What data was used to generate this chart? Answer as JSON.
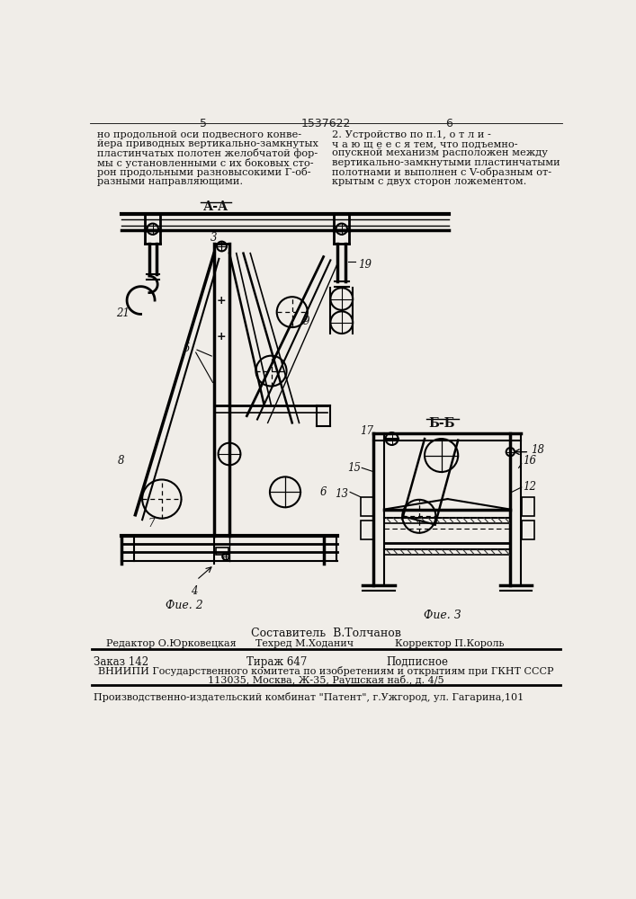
{
  "bg_color": "#f0ede8",
  "page_num_left": "5",
  "page_num_center": "1537622",
  "page_num_right": "6",
  "text_left_col": [
    "но продольной оси подвесного конве-",
    "йера приводных вертикально-замкнутых",
    "пластинчатых полотен желобчатой фор-",
    "мы с установленными с их боковых сто-",
    "рон продольными разновысокими Г-об-",
    "разными направляющими."
  ],
  "text_right_col": [
    "2. Устройство по п.1, о т л и -",
    "ч а ю щ е е с я тем, что подъемно-",
    "опускной механизм расположен между",
    "вертикально-замкнутыми пластинчатыми",
    "полотнами и выполнен с V-образным от-",
    "крытым с двух сторон ложементом."
  ],
  "fig2_label": "Фие. 2",
  "fig3_label": "Фие. З",
  "section_label_aa": "А-А",
  "section_label_bb": "Б-Б",
  "compositor": "Составитель  В.Толчанов",
  "editor": "Редактор О.Юрковецкая",
  "techred": "Техред М.Ходанич",
  "corrector": "Корректор П.Король",
  "order": "Заказ 142",
  "copies": "Тираж 647",
  "subscription": "Подписное",
  "vniipи_line1": "ВНИИПИ Государственного комитета по изобретениям и открытиям при ГКНТ СССР",
  "vniipи_line2": "113035, Москва, Ж-35, Раушская наб., д. 4/5",
  "publisher": "Производственно-издательский комбинат \"Патент\", г.Ужгород, ул. Гагарина,101"
}
